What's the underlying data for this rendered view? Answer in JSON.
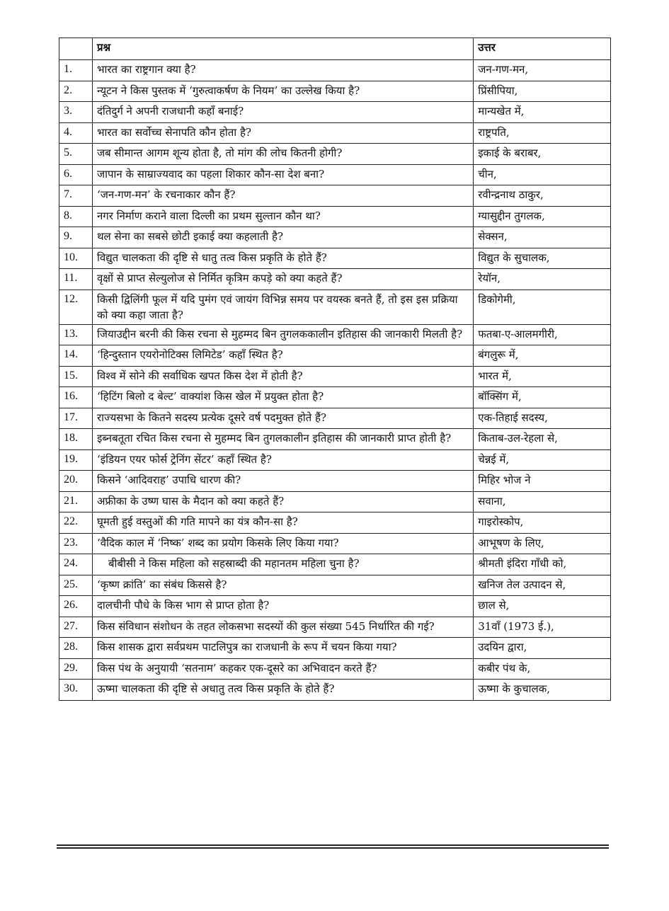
{
  "table": {
    "headers": [
      "",
      "प्रश्न",
      "उत्तर"
    ],
    "rows": [
      {
        "num": "1.",
        "q": "भारत का राष्ट्रगान क्या है?",
        "a": "जन-गण-मन,"
      },
      {
        "num": "2.",
        "q": "न्यूटन ने किस पुस्तक में ‘गुरुत्वाकर्षण के नियम’ का उल्लेख किया है?",
        "a": "प्रिंसीपिया,"
      },
      {
        "num": "3.",
        "q": "दंतिदुर्ग ने अपनी राजधानी कहाँ बनाई?",
        "a": "मान्यखेत में,"
      },
      {
        "num": "4.",
        "q": "भारत का सर्वोच्च सेनापति कौन होता है?",
        "a": "राष्ट्रपति,"
      },
      {
        "num": "5.",
        "q": "जब सीमान्त आगम शून्य होता है, तो मांग की लोच कितनी होगी?",
        "a": "इकाई के बराबर,"
      },
      {
        "num": "6.",
        "q": "जापान के साम्राज्यवाद का पहला शिकार कौन-सा देश बना?",
        "a": "चीन,"
      },
      {
        "num": "7.",
        "q": "‘जन-गण-मन’ के रचनाकार कौन हैं?",
        "a": "रवीन्द्रनाथ ठाकुर,"
      },
      {
        "num": "8.",
        "q": "नगर निर्माण कराने वाला दिल्ली का प्रथम सुल्तान कौन था?",
        "a": "ग्यासुद्दीन तुगलक,"
      },
      {
        "num": "9.",
        "q": "थल सेना का सबसे छोटी इकाई क्या कहलाती है?",
        "a": "सेक्सन,"
      },
      {
        "num": "10.",
        "q": "विद्युत चालकता की दृष्टि से धातु तत्व किस प्रकृति के होते हैं?",
        "a": "विद्युत के सुचालक,"
      },
      {
        "num": "11.",
        "q": "वृक्षों से प्राप्त सेल्युलोज से निर्मित कृत्रिम कपड़े को क्या कहते हैं?",
        "a": "रेयॉन,"
      },
      {
        "num": "12.",
        "q": "किसी द्विलिंगी फूल में यदि पुमंग एवं जायंग विभिन्न समय पर वयस्क बनते हैं, तो इस इस प्रक्रिया को क्या कहा जाता है?",
        "a": "डिकोगेमी,"
      },
      {
        "num": "13.",
        "q": "जियाउद्दीन बरनी की किस रचना से मुहम्मद बिन तुगलककालीन इतिहास की जानकारी मिलती है?",
        "a": "फतबा-ए-आलमगीरी,"
      },
      {
        "num": "14.",
        "q": "‘हिन्दुस्तान एयरोनोटिक्स लिमिटेड’ कहाँ स्थित है?",
        "a": "बंगलुरू में,"
      },
      {
        "num": "15.",
        "q": "विश्व में सोने की सर्वाधिक खपत किस देश में होती है?",
        "a": "भारत में,"
      },
      {
        "num": "16.",
        "q": "‘हिटिंग बिलो द बेल्ट’ वाक्यांश किस खेल में प्रयुक्त होता है?",
        "a": "बॉक्सिंग में,"
      },
      {
        "num": "17.",
        "q": "राज्यसभा के कितने सदस्य प्रत्येक दूसरे वर्ष पदमुक्त होते हैं?",
        "a": "एक-तिहाई सदस्य,"
      },
      {
        "num": "18.",
        "q": "इब्नबतूता रचित किस रचना से मुहम्मद बिन तुगलकालीन इतिहास की जानकारी प्राप्त होती है?",
        "a": "किताब-उल-रेहला से,"
      },
      {
        "num": "19.",
        "q": "‘इंडियन एयर फोर्स ट्रेनिंग सेंटर’ कहाँ स्थित है?",
        "a": "चेन्नई में,"
      },
      {
        "num": "20.",
        "q": "किसने ‘आदिवराह’ उपाधि धारण की?",
        "a": "मिहिर भोज ने"
      },
      {
        "num": "21.",
        "q": "अफ्रीका के उष्ण घास के मैदान को क्या कहते हैं?",
        "a": "सवाना,"
      },
      {
        "num": "22.",
        "q": "घूमती हुई वस्तुओं की गति मापने का यंत्र कौन-सा है?",
        "a": "गाइरोस्कोप,"
      },
      {
        "num": "23.",
        "q": "‘वैदिक काल में ‘निष्क’ शब्द का प्रयोग किसके लिए किया गया?",
        "a": "आभूषण के लिए,"
      },
      {
        "num": "24.",
        "q": "बीबीसी ने किस महिला को सहस्राब्दी की महानतम महिला चुना है?",
        "a": "श्रीमती इंदिरा गाँधी को,"
      },
      {
        "num": "25.",
        "q": "‘कृष्ण क्रांति’ का संबंध किससे है?",
        "a": "खनिज तेल उत्पादन से,"
      },
      {
        "num": "26.",
        "q": "दालचीनी पौधे के किस भाग से प्राप्त होता है?",
        "a": "छाल से,"
      },
      {
        "num": "27.",
        "q": "किस संविधान संशोधन के तहत लोकसभा सदस्यों की कुल संख्या 545 निर्धारित की गई?",
        "a": "31वाँ (1973 ई.),"
      },
      {
        "num": "28.",
        "q": "किस शासक द्वारा सर्वप्रथम पाटलिपुत्र का राजधानी के रूप में चयन किया गया?",
        "a": "उदयिन द्वारा,"
      },
      {
        "num": "29.",
        "q": "किस पंथ के अनुयायी ‘सतनाम’ कहकर एक-दूसरे का अभिवादन करते हैं?",
        "a": "कबीर पंथ के,"
      },
      {
        "num": "30.",
        "q": "ऊष्मा चालकता की दृष्टि से अधातु तत्व किस प्रकृति के होते हैं?",
        "a": "ऊष्मा के कुचालक,"
      }
    ]
  }
}
